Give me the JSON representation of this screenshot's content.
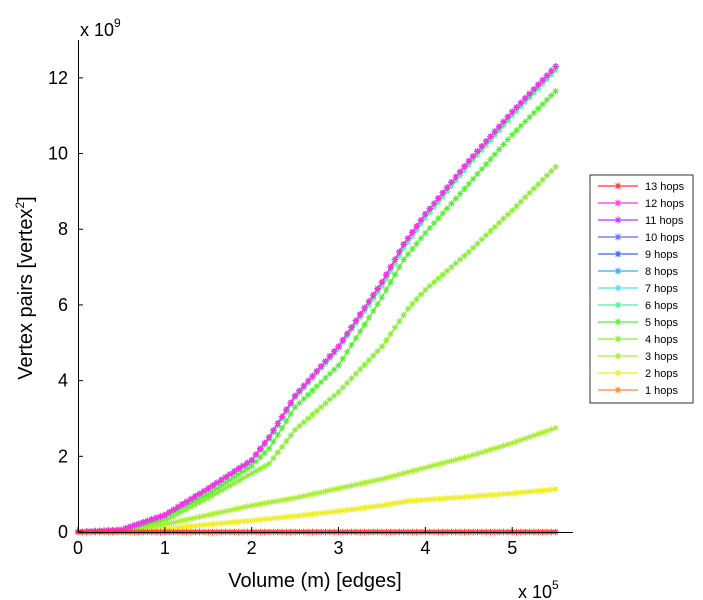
{
  "chart_data": {
    "type": "line",
    "xlabel": "Volume (m) [edges]",
    "ylabel": "Vertex pairs [vertex",
    "ylabel_sup": "2",
    "ylabel_end": "]",
    "x_multiplier_base": "x 10",
    "x_multiplier_exp": "5",
    "y_multiplier_base": "x 10",
    "y_multiplier_exp": "9",
    "xlim": [
      0,
      5.7
    ],
    "ylim": [
      0,
      13
    ],
    "xticks": [
      0,
      1,
      2,
      3,
      4,
      5
    ],
    "yticks": [
      0,
      2,
      4,
      6,
      8,
      10,
      12
    ],
    "grid": false,
    "legend_position": "right",
    "series": [
      {
        "name": "13 hops",
        "color": "#ff3333",
        "x": [
          0,
          1,
          2,
          3,
          4,
          5,
          5.5
        ],
        "y": [
          0,
          0,
          0,
          0,
          0,
          0,
          0
        ]
      },
      {
        "name": "12 hops",
        "color": "#ff33dd",
        "x": [
          0,
          0.5,
          1,
          1.5,
          2,
          2.2,
          2.5,
          3,
          3.5,
          3.75,
          4,
          4.5,
          5,
          5.5
        ],
        "y": [
          0,
          0.06,
          0.45,
          1.15,
          1.9,
          2.5,
          3.6,
          4.9,
          6.6,
          7.6,
          8.4,
          9.8,
          11.1,
          12.3
        ]
      },
      {
        "name": "11 hops",
        "color": "#bb33ff",
        "x": [
          0,
          0.5,
          1,
          1.5,
          2,
          2.2,
          2.5,
          3,
          3.5,
          3.75,
          4,
          4.5,
          5,
          5.5
        ],
        "y": [
          0,
          0.06,
          0.45,
          1.15,
          1.9,
          2.5,
          3.6,
          4.9,
          6.6,
          7.6,
          8.4,
          9.8,
          11.1,
          12.3
        ]
      },
      {
        "name": "10 hops",
        "color": "#6666ff",
        "x": [
          0,
          0.5,
          1,
          1.5,
          2,
          2.2,
          2.5,
          3,
          3.5,
          3.75,
          4,
          4.5,
          5,
          5.5
        ],
        "y": [
          0,
          0.06,
          0.45,
          1.15,
          1.9,
          2.5,
          3.6,
          4.9,
          6.6,
          7.6,
          8.4,
          9.8,
          11.1,
          12.3
        ]
      },
      {
        "name": "9 hops",
        "color": "#3366ff",
        "x": [
          0,
          0.5,
          1,
          1.5,
          2,
          2.2,
          2.5,
          3,
          3.5,
          3.75,
          4,
          4.5,
          5,
          5.5
        ],
        "y": [
          0,
          0.06,
          0.45,
          1.15,
          1.9,
          2.5,
          3.6,
          4.9,
          6.6,
          7.6,
          8.4,
          9.8,
          11.1,
          12.3
        ]
      },
      {
        "name": "8 hops",
        "color": "#33aaff",
        "x": [
          0,
          0.5,
          1,
          1.5,
          2,
          2.2,
          2.5,
          3,
          3.5,
          3.75,
          4,
          4.5,
          5,
          5.5
        ],
        "y": [
          0,
          0.06,
          0.45,
          1.15,
          1.9,
          2.5,
          3.6,
          4.9,
          6.6,
          7.6,
          8.4,
          9.8,
          11.1,
          12.3
        ]
      },
      {
        "name": "7 hops",
        "color": "#55ddee",
        "x": [
          0,
          0.5,
          1,
          1.5,
          2,
          2.2,
          2.5,
          3,
          3.5,
          3.75,
          4,
          4.5,
          5,
          5.5
        ],
        "y": [
          0,
          0.06,
          0.45,
          1.15,
          1.9,
          2.5,
          3.6,
          4.9,
          6.6,
          7.6,
          8.4,
          9.8,
          11.1,
          12.3
        ]
      },
      {
        "name": "6 hops",
        "color": "#55ee99",
        "x": [
          0,
          0.5,
          1,
          1.5,
          2,
          2.2,
          2.5,
          3,
          3.5,
          3.75,
          4,
          4.5,
          5,
          5.5
        ],
        "y": [
          0,
          0.06,
          0.45,
          1.15,
          1.88,
          2.45,
          3.55,
          4.85,
          6.5,
          7.5,
          8.3,
          9.7,
          11.0,
          12.2
        ]
      },
      {
        "name": "5 hops",
        "color": "#55ee33",
        "x": [
          0,
          0.5,
          1,
          1.5,
          2,
          2.2,
          2.5,
          3,
          3.5,
          3.75,
          4,
          4.5,
          5,
          5.5
        ],
        "y": [
          0,
          0.05,
          0.4,
          1.0,
          1.75,
          2.2,
          3.3,
          4.4,
          6.2,
          7.2,
          7.9,
          9.2,
          10.5,
          11.65
        ]
      },
      {
        "name": "4 hops",
        "color": "#88ee33",
        "x": [
          0,
          0.5,
          1,
          1.5,
          2,
          2.2,
          2.5,
          3,
          3.5,
          3.8,
          4,
          4.5,
          5,
          5.5
        ],
        "y": [
          0,
          0.04,
          0.3,
          0.9,
          1.55,
          1.8,
          2.7,
          3.7,
          4.9,
          5.9,
          6.4,
          7.4,
          8.5,
          9.65
        ]
      },
      {
        "name": "3 hops",
        "color": "#aaee33",
        "x": [
          0,
          0.5,
          1,
          1.5,
          2,
          2.5,
          3,
          3.5,
          4,
          4.5,
          5,
          5.5
        ],
        "y": [
          0,
          0.02,
          0.2,
          0.45,
          0.7,
          0.9,
          1.15,
          1.4,
          1.7,
          2.0,
          2.35,
          2.75
        ]
      },
      {
        "name": "2 hops",
        "color": "#eeee22",
        "x": [
          0,
          0.5,
          1,
          1.5,
          2,
          2.5,
          3,
          3.5,
          3.8,
          4,
          4.5,
          5,
          5.5
        ],
        "y": [
          0,
          0.01,
          0.08,
          0.2,
          0.3,
          0.42,
          0.55,
          0.7,
          0.82,
          0.85,
          0.93,
          1.02,
          1.13
        ]
      },
      {
        "name": "1 hops",
        "color": "#ff8833",
        "x": [
          0,
          1,
          2,
          3,
          4,
          5,
          5.5
        ],
        "y": [
          0,
          0,
          0,
          0,
          0,
          0,
          0
        ]
      }
    ]
  }
}
